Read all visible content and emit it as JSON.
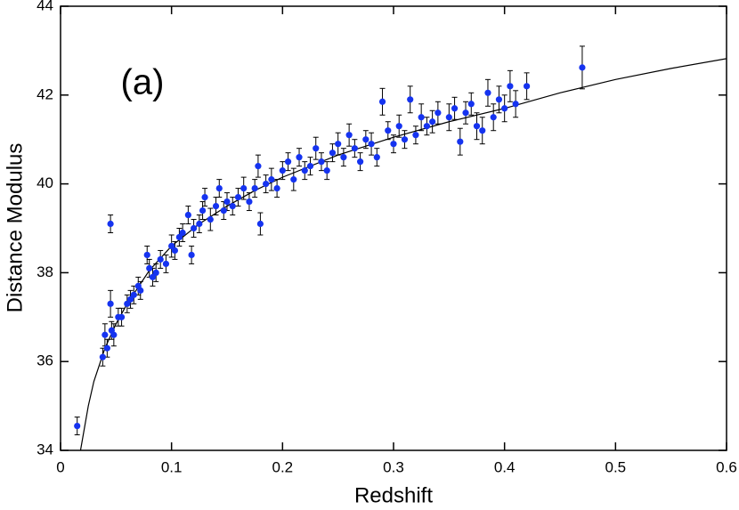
{
  "chart_data": {
    "type": "scatter",
    "x_label": "Redshift",
    "y_label": "Distance Modulus",
    "annotation": "(a)",
    "xlim": [
      0,
      0.6
    ],
    "ylim": [
      34,
      44
    ],
    "xticks": [
      0,
      0.1,
      0.2,
      0.3,
      0.4,
      0.5,
      0.6
    ],
    "yticks": [
      34,
      36,
      38,
      40,
      42,
      44
    ],
    "series": [
      {
        "color": "#1533f0",
        "x": [
          0.038,
          0.04,
          0.042,
          0.046,
          0.048,
          0.052,
          0.055,
          0.06,
          0.063,
          0.066,
          0.07,
          0.072,
          0.078,
          0.08,
          0.083,
          0.086,
          0.09,
          0.095,
          0.1,
          0.103,
          0.107,
          0.11,
          0.115,
          0.118,
          0.12,
          0.125,
          0.128,
          0.13,
          0.135,
          0.14,
          0.143,
          0.147,
          0.15,
          0.155,
          0.16,
          0.165,
          0.17,
          0.175,
          0.178,
          0.18,
          0.185,
          0.19,
          0.195,
          0.2,
          0.205,
          0.21,
          0.215,
          0.22,
          0.225,
          0.23,
          0.235,
          0.24,
          0.245,
          0.25,
          0.255,
          0.26,
          0.265,
          0.27,
          0.275,
          0.28,
          0.285,
          0.29,
          0.295,
          0.3,
          0.305,
          0.31,
          0.32,
          0.325,
          0.33,
          0.335,
          0.34,
          0.35,
          0.355,
          0.36,
          0.365,
          0.37,
          0.375,
          0.38,
          0.385,
          0.39,
          0.395,
          0.4,
          0.405,
          0.41,
          0.015,
          0.045,
          0.045,
          0.315,
          0.42,
          0.47
        ],
        "values": [
          36.1,
          36.6,
          36.3,
          36.7,
          36.6,
          37.0,
          37.0,
          37.3,
          37.4,
          37.5,
          37.7,
          37.6,
          38.4,
          38.1,
          37.9,
          38.0,
          38.3,
          38.2,
          38.6,
          38.5,
          38.8,
          38.9,
          39.3,
          38.4,
          39.0,
          39.1,
          39.4,
          39.7,
          39.2,
          39.5,
          39.9,
          39.4,
          39.6,
          39.5,
          39.7,
          39.9,
          39.6,
          39.9,
          40.4,
          39.1,
          40.0,
          40.1,
          39.9,
          40.3,
          40.5,
          40.1,
          40.6,
          40.3,
          40.4,
          40.8,
          40.5,
          40.3,
          40.7,
          40.9,
          40.6,
          41.1,
          40.8,
          40.5,
          41.0,
          40.9,
          40.6,
          41.85,
          41.2,
          40.9,
          41.3,
          41.0,
          41.1,
          41.5,
          41.3,
          41.4,
          41.6,
          41.5,
          41.7,
          40.95,
          41.6,
          41.8,
          41.3,
          41.2,
          42.05,
          41.5,
          41.9,
          41.7,
          42.2,
          41.8,
          34.55,
          39.1,
          37.3,
          41.9,
          42.2,
          42.62
        ],
        "errors": [
          0.2,
          0.25,
          0.2,
          0.2,
          0.25,
          0.2,
          0.2,
          0.2,
          0.2,
          0.2,
          0.2,
          0.2,
          0.2,
          0.2,
          0.2,
          0.2,
          0.2,
          0.2,
          0.25,
          0.2,
          0.2,
          0.2,
          0.2,
          0.2,
          0.2,
          0.2,
          0.2,
          0.2,
          0.25,
          0.2,
          0.2,
          0.2,
          0.2,
          0.2,
          0.2,
          0.25,
          0.2,
          0.2,
          0.25,
          0.25,
          0.2,
          0.25,
          0.2,
          0.2,
          0.2,
          0.25,
          0.2,
          0.2,
          0.2,
          0.25,
          0.2,
          0.2,
          0.2,
          0.25,
          0.2,
          0.25,
          0.2,
          0.2,
          0.2,
          0.25,
          0.2,
          0.3,
          0.2,
          0.2,
          0.25,
          0.2,
          0.2,
          0.3,
          0.2,
          0.25,
          0.25,
          0.3,
          0.25,
          0.3,
          0.25,
          0.25,
          0.3,
          0.3,
          0.3,
          0.3,
          0.3,
          0.3,
          0.35,
          0.3,
          0.2,
          0.2,
          0.3,
          0.3,
          0.3,
          0.48
        ]
      }
    ],
    "fit": {
      "color": "#000000",
      "x": [
        0.018,
        0.025,
        0.03,
        0.04,
        0.05,
        0.06,
        0.08,
        0.1,
        0.125,
        0.15,
        0.175,
        0.2,
        0.25,
        0.3,
        0.35,
        0.4,
        0.45,
        0.5,
        0.55,
        0.6
      ],
      "values": [
        34.0,
        35.0,
        35.55,
        36.3,
        36.85,
        37.3,
        38.05,
        38.6,
        39.1,
        39.5,
        39.85,
        40.15,
        40.65,
        41.05,
        41.4,
        41.7,
        42.05,
        42.35,
        42.6,
        42.82
      ]
    }
  }
}
